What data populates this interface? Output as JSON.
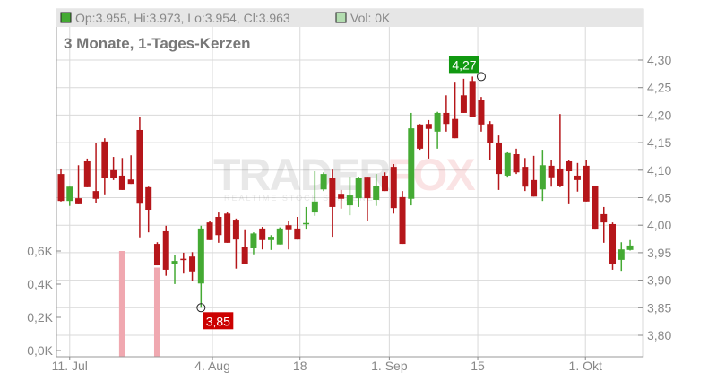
{
  "header": {
    "ohlc_text": "Op:3.955, Hi:3.973, Lo:3.954, Cl:3.963",
    "vol_text": "Vol: 0K",
    "title": "3 Monate, 1-Tages-Kerzen"
  },
  "watermark": {
    "logo": "TRADERFOX",
    "tagline": "REALTIME STOCK SCREENER"
  },
  "colors": {
    "up": "#44aa33",
    "down": "#b5161a",
    "volume": "#f0a8b0",
    "grid": "#d9d9d9",
    "high_label": "#119911",
    "low_label": "#cc0000"
  },
  "chart_data": {
    "type": "candlestick",
    "title": "3 Monate, 1-Tages-Kerzen",
    "price_axis": {
      "side": "right",
      "ylim": [
        3.78,
        4.32
      ],
      "ticks": [
        "3,80",
        "3,85",
        "3,90",
        "3,95",
        "4,00",
        "4,05",
        "4,10",
        "4,15",
        "4,20",
        "4,25",
        "4,30"
      ],
      "tick_values": [
        3.8,
        3.85,
        3.9,
        3.95,
        4.0,
        4.05,
        4.1,
        4.15,
        4.2,
        4.25,
        4.3
      ]
    },
    "volume_axis": {
      "side": "left",
      "ticks": [
        "0,0K",
        "0,2K",
        "0,4K",
        "0,6K"
      ],
      "tick_values": [
        0,
        0.2,
        0.4,
        0.6
      ]
    },
    "x_ticks": [
      {
        "label": "11. Jul",
        "candle": 1.0
      },
      {
        "label": "4. Aug",
        "candle": 17.3
      },
      {
        "label": "18",
        "candle": 27.3
      },
      {
        "label": "1. Sep",
        "candle": 37.5
      },
      {
        "label": "15",
        "candle": 47.6
      },
      {
        "label": "1. Okt",
        "candle": 59.9
      }
    ],
    "grid": true,
    "annotations": [
      {
        "label": "4,27",
        "candle": 48,
        "value": 4.27,
        "kind": "high"
      },
      {
        "label": "3,85",
        "candle": 16,
        "value": 3.85,
        "kind": "low"
      }
    ],
    "candles": [
      [
        4.093,
        4.103,
        4.043,
        4.044
      ],
      [
        4.044,
        4.07,
        4.035,
        4.07
      ],
      [
        4.049,
        4.109,
        4.038,
        4.038
      ],
      [
        4.116,
        4.121,
        4.069,
        4.069
      ],
      [
        4.062,
        4.149,
        4.041,
        4.048
      ],
      [
        4.152,
        4.158,
        4.056,
        4.085
      ],
      [
        4.1,
        4.124,
        4.082,
        4.085
      ],
      [
        4.09,
        4.122,
        4.064,
        4.064
      ],
      [
        4.083,
        4.127,
        4.075,
        4.075
      ],
      [
        4.173,
        4.197,
        3.978,
        4.039
      ],
      [
        4.069,
        4.07,
        3.987,
        4.028
      ],
      [
        3.966,
        3.969,
        3.927,
        3.927
      ],
      [
        3.989,
        3.999,
        3.908,
        3.919
      ],
      [
        3.929,
        3.945,
        3.893,
        3.935
      ],
      [
        3.939,
        3.95,
        3.912,
        3.937
      ],
      [
        3.943,
        3.951,
        3.899,
        3.916
      ],
      [
        3.894,
        3.999,
        3.85,
        3.994
      ],
      [
        4.005,
        4.007,
        3.973,
        3.973
      ],
      [
        4.015,
        4.023,
        3.968,
        3.982
      ],
      [
        4.021,
        4.023,
        3.968,
        3.968
      ],
      [
        4.01,
        4.012,
        3.921,
        3.974
      ],
      [
        3.961,
        3.991,
        3.93,
        3.93
      ],
      [
        3.958,
        3.987,
        3.947,
        3.985
      ],
      [
        3.994,
        3.997,
        3.956,
        3.973
      ],
      [
        3.973,
        3.982,
        3.955,
        3.979
      ],
      [
        3.965,
        3.996,
        3.965,
        3.994
      ],
      [
        4.0,
        4.007,
        3.956,
        3.991
      ],
      [
        3.994,
        4.015,
        3.974,
        3.974
      ],
      [
        4.002,
        4.033,
        3.992,
        4.004
      ],
      [
        4.023,
        4.098,
        4.017,
        4.043
      ],
      [
        4.065,
        4.096,
        4.062,
        4.093
      ],
      [
        4.085,
        4.101,
        3.979,
        4.033
      ],
      [
        4.057,
        4.064,
        4.03,
        4.048
      ],
      [
        4.036,
        4.088,
        4.018,
        4.054
      ],
      [
        4.049,
        4.088,
        4.033,
        4.085
      ],
      [
        4.088,
        4.088,
        4.008,
        4.049
      ],
      [
        4.046,
        4.093,
        4.035,
        4.072
      ],
      [
        4.09,
        4.096,
        4.062,
        4.062
      ],
      [
        4.106,
        4.111,
        4.021,
        4.031
      ],
      [
        4.051,
        4.062,
        3.966,
        3.966
      ],
      [
        4.048,
        4.204,
        4.036,
        4.176
      ],
      [
        4.183,
        4.184,
        4.137,
        4.139
      ],
      [
        4.184,
        4.191,
        4.121,
        4.175
      ],
      [
        4.17,
        4.206,
        4.139,
        4.204
      ],
      [
        4.204,
        4.236,
        4.17,
        4.184
      ],
      [
        4.193,
        4.259,
        4.158,
        4.158
      ],
      [
        4.236,
        4.266,
        4.204,
        4.204
      ],
      [
        4.262,
        4.27,
        4.196,
        4.196
      ],
      [
        4.228,
        4.233,
        4.17,
        4.183
      ],
      [
        4.184,
        4.189,
        4.118,
        4.149
      ],
      [
        4.15,
        4.163,
        4.064,
        4.093
      ],
      [
        4.09,
        4.134,
        4.088,
        4.131
      ],
      [
        4.129,
        4.139,
        4.093,
        4.096
      ],
      [
        4.106,
        4.122,
        4.062,
        4.07
      ],
      [
        4.082,
        4.126,
        4.052,
        4.052
      ],
      [
        4.065,
        4.137,
        4.044,
        4.109
      ],
      [
        4.108,
        4.118,
        4.07,
        4.087
      ],
      [
        4.103,
        4.202,
        4.069,
        4.072
      ],
      [
        4.116,
        4.119,
        4.038,
        4.098
      ],
      [
        4.09,
        4.113,
        4.061,
        4.082
      ],
      [
        4.108,
        4.119,
        4.043,
        4.043
      ],
      [
        4.072,
        4.072,
        3.992,
        3.992
      ],
      [
        4.02,
        4.033,
        3.968,
        4.005
      ],
      [
        4.002,
        4.005,
        3.919,
        3.93
      ],
      [
        3.937,
        3.969,
        3.917,
        3.956
      ],
      [
        3.955,
        3.973,
        3.954,
        3.963
      ]
    ],
    "candle_fields": [
      "open",
      "high",
      "low",
      "close"
    ],
    "volume": [
      0,
      0,
      0,
      0,
      0,
      0,
      0,
      0.6,
      0,
      0,
      0,
      0.5,
      0,
      0,
      0,
      0,
      0,
      0,
      0,
      0,
      0,
      0,
      0,
      0,
      0,
      0,
      0,
      0,
      0,
      0,
      0,
      0,
      0,
      0,
      0,
      0,
      0,
      0,
      0,
      0,
      0,
      0,
      0,
      0,
      0,
      0,
      0,
      0,
      0,
      0,
      0,
      0,
      0,
      0,
      0,
      0,
      0,
      0,
      0,
      0,
      0,
      0,
      0,
      0,
      0,
      0
    ]
  }
}
